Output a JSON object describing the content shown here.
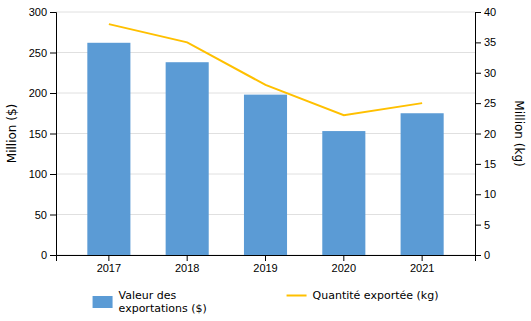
{
  "chart_data": {
    "type": "bar",
    "categories": [
      "2017",
      "2018",
      "2019",
      "2020",
      "2021"
    ],
    "series": [
      {
        "name": "Valeur des\nexportations ($)",
        "type": "bar",
        "color": "#5B9BD5",
        "values": [
          262,
          238,
          198,
          153,
          175
        ]
      },
      {
        "name": "Quantité exportée (kg)",
        "type": "line",
        "axis": "y2",
        "color": "#FFC000",
        "values": [
          38,
          35,
          28,
          23,
          25
        ]
      }
    ],
    "ylabel": "Million ($)",
    "y2label": "Million (kg)",
    "ylim": [
      0,
      300
    ],
    "yticks": [
      0,
      50,
      100,
      150,
      200,
      250,
      300
    ],
    "y2lim": [
      0,
      40
    ],
    "y2ticks": [
      0,
      5,
      10,
      15,
      20,
      25,
      30,
      35,
      40
    ],
    "grid": true,
    "legend": "bottom"
  }
}
